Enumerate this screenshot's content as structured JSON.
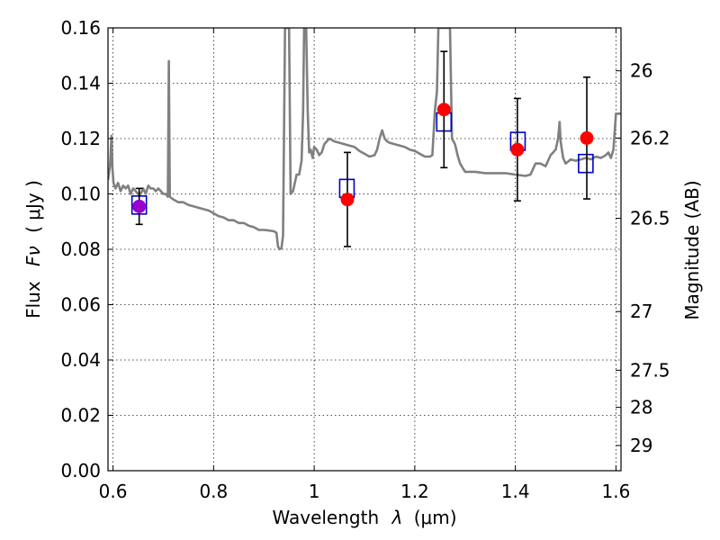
{
  "chart_data": {
    "type": "scatter",
    "xlabel": "Wavelength",
    "xlabel_symbol": "λ",
    "xlabel_unit": "(μm)",
    "ylabel": "Flux",
    "ylabel_symbol": "Fν",
    "ylabel_unit": "( μJy )",
    "ylabel_right": "Magnitude (AB)",
    "xlim": [
      0.59,
      1.61
    ],
    "ylim": [
      0.0,
      0.16
    ],
    "grid": true,
    "x_ticks": [
      0.6,
      0.8,
      1.0,
      1.2,
      1.4,
      1.6
    ],
    "x_tick_labels": [
      "0.6",
      "0.8",
      "1",
      "1.2",
      "1.4",
      "1.6"
    ],
    "y_ticks": [
      0.0,
      0.02,
      0.04,
      0.06,
      0.08,
      0.1,
      0.12,
      0.14,
      0.16
    ],
    "y_tick_labels": [
      "0.00",
      "0.02",
      "0.04",
      "0.06",
      "0.08",
      "0.10",
      "0.12",
      "0.14",
      "0.16"
    ],
    "right_ticks": [
      {
        "label": "26",
        "flux": 0.1445
      },
      {
        "label": "26.2",
        "flux": 0.1202
      },
      {
        "label": "26.5",
        "flux": 0.0912
      },
      {
        "label": "27",
        "flux": 0.0575
      },
      {
        "label": "27.5",
        "flux": 0.0363
      },
      {
        "label": "28",
        "flux": 0.0229
      },
      {
        "label": "29",
        "flux": 0.0091
      }
    ],
    "series": [
      {
        "name": "model_spectrum",
        "kind": "line",
        "color": "#808080",
        "points": [
          [
            0.59,
            0.105
          ],
          [
            0.594,
            0.11
          ],
          [
            0.597,
            0.121
          ],
          [
            0.599,
            0.109
          ],
          [
            0.601,
            0.104
          ],
          [
            0.605,
            0.102
          ],
          [
            0.61,
            0.104
          ],
          [
            0.615,
            0.101
          ],
          [
            0.62,
            0.103
          ],
          [
            0.625,
            0.102
          ],
          [
            0.63,
            0.103
          ],
          [
            0.635,
            0.1
          ],
          [
            0.64,
            0.102
          ],
          [
            0.645,
            0.101
          ],
          [
            0.65,
            0.1
          ],
          [
            0.655,
            0.1
          ],
          [
            0.66,
            0.102
          ],
          [
            0.665,
            0.1
          ],
          [
            0.67,
            0.103
          ],
          [
            0.675,
            0.102
          ],
          [
            0.68,
            0.102
          ],
          [
            0.685,
            0.101
          ],
          [
            0.69,
            0.102
          ],
          [
            0.695,
            0.101
          ],
          [
            0.7,
            0.1
          ],
          [
            0.705,
            0.1
          ],
          [
            0.709,
            0.099
          ],
          [
            0.711,
            0.148
          ],
          [
            0.713,
            0.099
          ],
          [
            0.72,
            0.098
          ],
          [
            0.73,
            0.097
          ],
          [
            0.74,
            0.097
          ],
          [
            0.75,
            0.096
          ],
          [
            0.76,
            0.0955
          ],
          [
            0.77,
            0.095
          ],
          [
            0.78,
            0.0945
          ],
          [
            0.79,
            0.094
          ],
          [
            0.8,
            0.093
          ],
          [
            0.81,
            0.092
          ],
          [
            0.82,
            0.0915
          ],
          [
            0.83,
            0.0905
          ],
          [
            0.84,
            0.0905
          ],
          [
            0.85,
            0.0895
          ],
          [
            0.86,
            0.0895
          ],
          [
            0.87,
            0.0885
          ],
          [
            0.88,
            0.088
          ],
          [
            0.89,
            0.087
          ],
          [
            0.9,
            0.087
          ],
          [
            0.91,
            0.0868
          ],
          [
            0.92,
            0.0865
          ],
          [
            0.925,
            0.086
          ],
          [
            0.928,
            0.081
          ],
          [
            0.931,
            0.08
          ],
          [
            0.935,
            0.0805
          ],
          [
            0.938,
            0.085
          ],
          [
            0.942,
            0.16
          ],
          [
            0.945,
            0.16
          ],
          [
            0.95,
            0.16
          ],
          [
            0.953,
            0.1
          ],
          [
            0.958,
            0.101
          ],
          [
            0.965,
            0.107
          ],
          [
            0.97,
            0.107
          ],
          [
            0.975,
            0.112
          ],
          [
            0.978,
            0.13
          ],
          [
            0.98,
            0.16
          ],
          [
            0.984,
            0.16
          ],
          [
            0.987,
            0.13
          ],
          [
            0.99,
            0.115
          ],
          [
            0.993,
            0.116
          ],
          [
            0.997,
            0.113
          ],
          [
            1.0,
            0.117
          ],
          [
            1.005,
            0.116
          ],
          [
            1.01,
            0.114
          ],
          [
            1.015,
            0.115
          ],
          [
            1.02,
            0.118
          ],
          [
            1.025,
            0.119
          ],
          [
            1.03,
            0.12
          ],
          [
            1.035,
            0.1195
          ],
          [
            1.04,
            0.119
          ],
          [
            1.05,
            0.1185
          ],
          [
            1.06,
            0.118
          ],
          [
            1.07,
            0.1175
          ],
          [
            1.08,
            0.117
          ],
          [
            1.09,
            0.1155
          ],
          [
            1.1,
            0.1145
          ],
          [
            1.11,
            0.1135
          ],
          [
            1.12,
            0.114
          ],
          [
            1.125,
            0.116
          ],
          [
            1.13,
            0.12
          ],
          [
            1.135,
            0.123
          ],
          [
            1.14,
            0.12
          ],
          [
            1.145,
            0.119
          ],
          [
            1.15,
            0.1185
          ],
          [
            1.16,
            0.118
          ],
          [
            1.17,
            0.1175
          ],
          [
            1.18,
            0.117
          ],
          [
            1.19,
            0.116
          ],
          [
            1.2,
            0.1155
          ],
          [
            1.21,
            0.1145
          ],
          [
            1.22,
            0.1135
          ],
          [
            1.23,
            0.1135
          ],
          [
            1.235,
            0.114
          ],
          [
            1.24,
            0.13
          ],
          [
            1.244,
            0.137
          ],
          [
            1.247,
            0.16
          ],
          [
            1.252,
            0.16
          ],
          [
            1.265,
            0.16
          ],
          [
            1.27,
            0.16
          ],
          [
            1.274,
            0.12
          ],
          [
            1.28,
            0.118
          ],
          [
            1.285,
            0.114
          ],
          [
            1.29,
            0.111
          ],
          [
            1.3,
            0.108
          ],
          [
            1.32,
            0.108
          ],
          [
            1.34,
            0.1075
          ],
          [
            1.36,
            0.1075
          ],
          [
            1.38,
            0.1075
          ],
          [
            1.4,
            0.107
          ],
          [
            1.42,
            0.1065
          ],
          [
            1.43,
            0.107
          ],
          [
            1.44,
            0.111
          ],
          [
            1.45,
            0.111
          ],
          [
            1.46,
            0.11
          ],
          [
            1.465,
            0.112
          ],
          [
            1.47,
            0.114
          ],
          [
            1.475,
            0.115
          ],
          [
            1.48,
            0.116
          ],
          [
            1.485,
            0.12
          ],
          [
            1.488,
            0.126
          ],
          [
            1.49,
            0.119
          ],
          [
            1.495,
            0.113
          ],
          [
            1.5,
            0.111
          ],
          [
            1.51,
            0.1125
          ],
          [
            1.52,
            0.112
          ],
          [
            1.53,
            0.1125
          ],
          [
            1.54,
            0.113
          ],
          [
            1.55,
            0.1125
          ],
          [
            1.56,
            0.1135
          ],
          [
            1.57,
            0.113
          ],
          [
            1.58,
            0.114
          ],
          [
            1.585,
            0.115
          ],
          [
            1.59,
            0.113
          ],
          [
            1.595,
            0.116
          ],
          [
            1.6,
            0.129
          ],
          [
            1.61,
            0.129
          ]
        ]
      },
      {
        "name": "model_band_flux",
        "kind": "open_square",
        "color": "#0000cc",
        "points": [
          [
            0.652,
            0.096
          ],
          [
            1.065,
            0.102
          ],
          [
            1.258,
            0.126
          ],
          [
            1.405,
            0.119
          ],
          [
            1.54,
            0.111
          ]
        ]
      },
      {
        "name": "observed_flux",
        "kind": "filled_circle",
        "color": "#ff0000",
        "highlight_color": "#9900cc",
        "points": [
          {
            "x": 0.652,
            "y": 0.0955,
            "err": 0.0065
          },
          {
            "x": 1.066,
            "y": 0.098,
            "err": 0.017
          },
          {
            "x": 1.258,
            "y": 0.1305,
            "err": 0.021
          },
          {
            "x": 1.404,
            "y": 0.116,
            "err": 0.0185
          },
          {
            "x": 1.542,
            "y": 0.1202,
            "err": 0.022
          }
        ]
      }
    ]
  }
}
